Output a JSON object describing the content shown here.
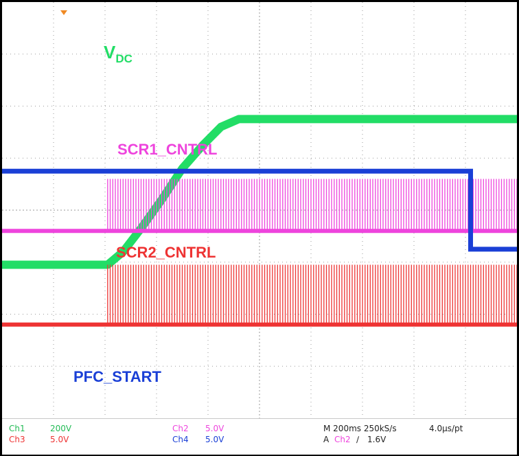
{
  "chart_data": {
    "type": "line",
    "title": "",
    "xlabel": "",
    "ylabel": "",
    "grid": true,
    "grid_divisions": {
      "x": 10,
      "y": 8
    },
    "time_per_division_ms": 200,
    "trigger_marker_time_ms": 0,
    "series": [
      {
        "name": "VDC",
        "channel": "Ch1",
        "color": "#22dd66",
        "kind": "analog",
        "time_ms": [
          0,
          170,
          230,
          300,
          380,
          460,
          540,
          610,
          680,
          740,
          2000
        ],
        "divisions": [
          2.95,
          2.95,
          3.2,
          3.65,
          4.2,
          4.8,
          5.25,
          5.6,
          5.75,
          5.75,
          5.75
        ]
      },
      {
        "name": "SCR1_CNTRL",
        "channel": "Ch2",
        "color": "#ee44dd",
        "kind": "pulse",
        "start_ms": 170,
        "pulse_height_div": 1.0
      },
      {
        "name": "SCR2_CNTRL",
        "channel": "Ch3",
        "color": "#ee3333",
        "kind": "pulse",
        "start_ms": 170,
        "pulse_height_div": 1.15
      },
      {
        "name": "PFC_START",
        "channel": "Ch4",
        "color": "#1a3fd6",
        "kind": "step",
        "high_div": 4.75,
        "low_div": 3.25,
        "step_time_ms": 1580
      }
    ]
  },
  "labels": {
    "vdc_main": "V",
    "vdc_sub": "DC",
    "scr1": "SCR1_CNTRL",
    "scr2": "SCR2_CNTRL",
    "pfc": "PFC_START"
  },
  "readout": {
    "ch1_name": "Ch1",
    "ch1_scale": "200V",
    "ch2_name": "Ch2",
    "ch2_scale": "5.0V",
    "ch3_name": "Ch3",
    "ch3_scale": "5.0V",
    "ch4_name": "Ch4",
    "ch4_scale": "5.0V",
    "timebase": "M 200ms 250kS/s",
    "record": "4.0µs/pt",
    "trigger_mode": "A",
    "trigger_channel": "Ch2",
    "trigger_slope": "∕",
    "trigger_level": "1.6V"
  },
  "colors": {
    "ch1": "#22dd66",
    "ch2": "#ee44dd",
    "ch3": "#ee3333",
    "ch4": "#1a3fd6",
    "grid": "#9a9a9a",
    "trigger_marker": "#f08a24"
  }
}
